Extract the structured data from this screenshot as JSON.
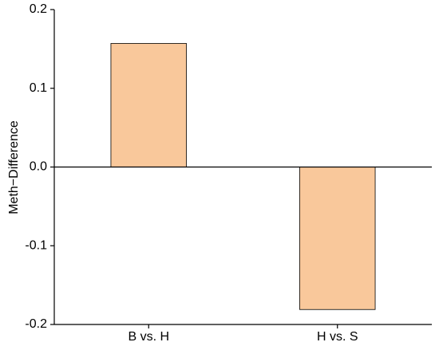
{
  "chart_data": {
    "type": "bar",
    "y_label": "Meth−Difference",
    "categories": [
      "B vs. H",
      "H vs. S"
    ],
    "values": [
      0.157,
      -0.181
    ],
    "color": "#f9c89b",
    "ylim": [
      -0.2,
      0.2
    ],
    "yticks": [
      -0.2,
      -0.1,
      {
        "value": 0,
        "label": "0.0"
      },
      0.1,
      0.2
    ],
    "grid": false
  }
}
